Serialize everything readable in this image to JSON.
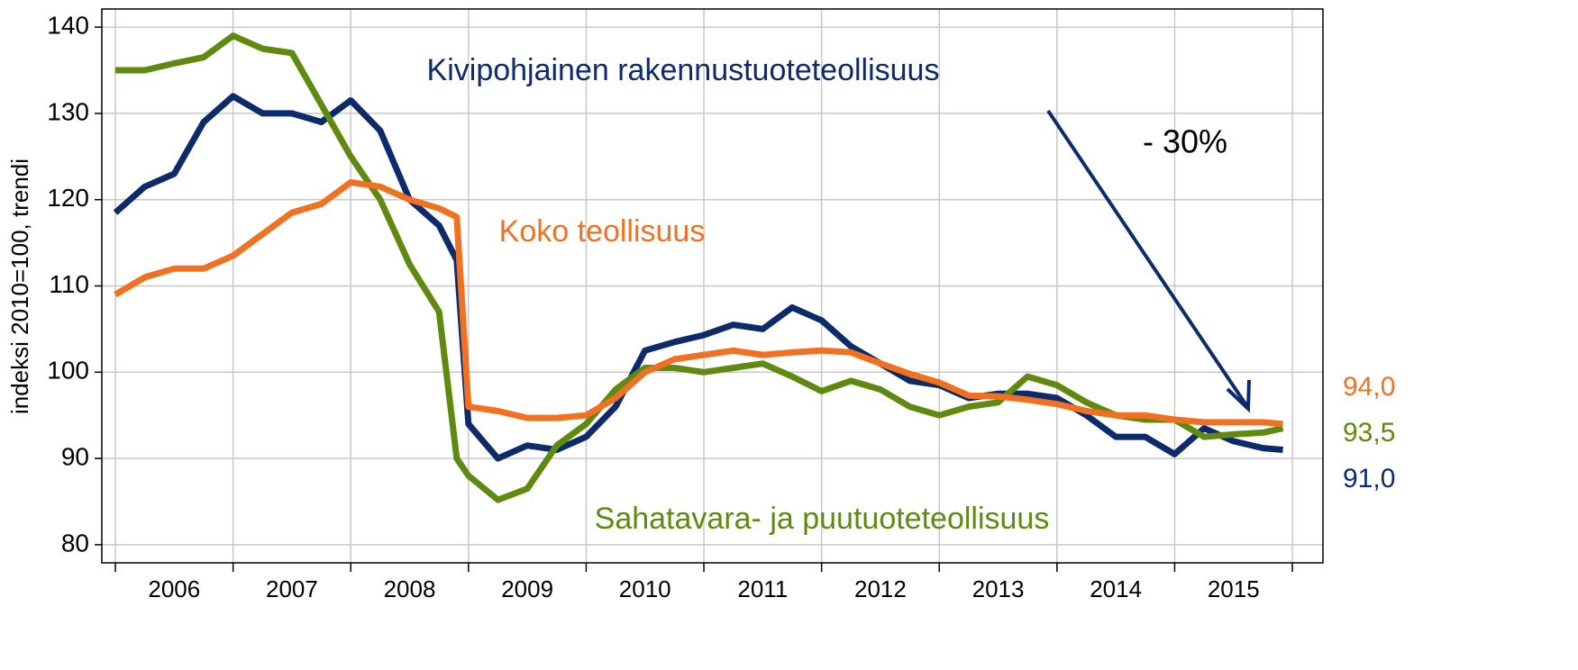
{
  "chart_data": {
    "type": "line",
    "y_label": "indeksi 2010=100, trendi",
    "annotation": "- 30%",
    "x": [
      2006.0,
      2006.25,
      2006.5,
      2006.75,
      2007.0,
      2007.25,
      2007.5,
      2007.75,
      2008.0,
      2008.25,
      2008.5,
      2008.75,
      2008.9,
      2009.0,
      2009.25,
      2009.5,
      2009.75,
      2010.0,
      2010.25,
      2010.5,
      2010.75,
      2011.0,
      2011.25,
      2011.5,
      2011.75,
      2012.0,
      2012.25,
      2012.5,
      2012.75,
      2013.0,
      2013.25,
      2013.5,
      2013.75,
      2014.0,
      2014.25,
      2014.5,
      2014.75,
      2015.0,
      2015.25,
      2015.5,
      2015.75,
      2015.92
    ],
    "series": [
      {
        "name": "Kivipohjainen rakennustuoteteollisuus",
        "color": "#0d2a6b",
        "end_label": "91,0",
        "values": [
          118.5,
          121.5,
          123,
          129,
          132,
          130,
          130,
          129,
          131.5,
          128,
          120,
          117,
          113,
          94,
          90,
          91.5,
          91,
          92.5,
          96,
          102.5,
          103.5,
          104.3,
          105.5,
          105,
          107.5,
          106,
          103,
          101,
          99,
          98.5,
          97,
          97.5,
          97.5,
          97,
          95,
          92.5,
          92.5,
          90.5,
          93.5,
          92,
          91.2,
          91.0
        ]
      },
      {
        "name": "Sahatavara- ja puutuoteteollisuus",
        "color": "#5f8a0f",
        "end_label": "93,5",
        "values": [
          135,
          135,
          135.8,
          136.5,
          139,
          137.5,
          137,
          131,
          125,
          120,
          112.5,
          107,
          90,
          88,
          85.2,
          86.5,
          91.5,
          94,
          98,
          100.5,
          100.5,
          100,
          100.5,
          101,
          99.5,
          97.8,
          99,
          98,
          96,
          95,
          96,
          96.5,
          99.5,
          98.5,
          96.5,
          95,
          94.5,
          94.5,
          92.5,
          92.8,
          93,
          93.5
        ]
      },
      {
        "name": "Koko teollisuus",
        "color": "#f07122",
        "end_label": "94,0",
        "values": [
          109,
          111,
          112,
          112,
          113.5,
          116,
          118.5,
          119.5,
          122,
          121.5,
          120,
          119,
          118,
          96,
          95.5,
          94.7,
          94.7,
          95,
          97,
          100,
          101.5,
          102,
          102.5,
          102,
          102.3,
          102.5,
          102.3,
          101,
          99.8,
          98.8,
          97.3,
          97.2,
          96.8,
          96.3,
          95.5,
          95,
          95,
          94.5,
          94.2,
          94.2,
          94.2,
          94.0
        ]
      }
    ],
    "xlim": [
      2005.885,
      2016.26
    ],
    "xticks": [
      {
        "value": 2006.5,
        "label": "2006"
      },
      {
        "value": 2007.5,
        "label": "2007"
      },
      {
        "value": 2008.5,
        "label": "2008"
      },
      {
        "value": 2009.5,
        "label": "2009"
      },
      {
        "value": 2010.5,
        "label": "2010"
      },
      {
        "value": 2011.5,
        "label": "2011"
      },
      {
        "value": 2012.5,
        "label": "2012"
      },
      {
        "value": 2013.5,
        "label": "2013"
      },
      {
        "value": 2014.5,
        "label": "2014"
      },
      {
        "value": 2015.5,
        "label": "2015"
      }
    ],
    "xgrid": [
      2006,
      2007,
      2008,
      2009,
      2010,
      2011,
      2012,
      2013,
      2014,
      2015,
      2016
    ],
    "ylim": [
      77.9,
      142.1
    ],
    "yticks": [
      80,
      90,
      100,
      110,
      120,
      130,
      140
    ],
    "grid": true
  }
}
